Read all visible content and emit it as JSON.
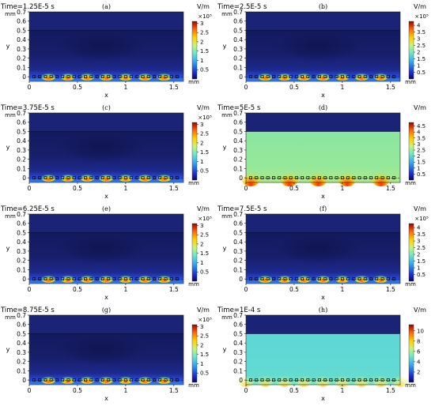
{
  "chart_data": [
    {
      "type": "heatmap",
      "panel_label": "(a)",
      "title": "Time=1.25E-5 s",
      "xlabel": "x",
      "ylabel": "y",
      "x_unit": "mm",
      "y_unit": "mm",
      "xlim": [
        0,
        1.6
      ],
      "ylim": [
        -0.05,
        0.7
      ],
      "x_ticks": [
        "0",
        "0.5",
        "1",
        "1.5"
      ],
      "y_ticks": [
        "0",
        "0.1",
        "0.2",
        "0.3",
        "0.4",
        "0.5",
        "0.6",
        "0.7"
      ],
      "colorbar": {
        "unit": "V/m",
        "multiplier": "×10⁵",
        "ticks": [
          "0.5",
          "1",
          "1.5",
          "2",
          "2.5",
          "3"
        ],
        "max": 3.1
      },
      "field_state": "low",
      "hot_spots": [
        0.2,
        0.4,
        0.6,
        0.8,
        1.0,
        1.2,
        1.4
      ]
    },
    {
      "type": "heatmap",
      "panel_label": "(b)",
      "title": "Time=2.5E-5 s",
      "xlabel": "x",
      "ylabel": "y",
      "x_unit": "mm",
      "y_unit": "mm",
      "xlim": [
        0,
        1.6
      ],
      "ylim": [
        -0.05,
        0.7
      ],
      "x_ticks": [
        "0",
        "0.5",
        "1",
        "1.5"
      ],
      "y_ticks": [
        "0",
        "0.1",
        "0.2",
        "0.3",
        "0.4",
        "0.5",
        "0.6",
        "0.7"
      ],
      "colorbar": {
        "unit": "V/m",
        "multiplier": "×10⁵",
        "ticks": [
          "0.5",
          "1",
          "1.5",
          "2",
          "2.5",
          "3",
          "3.5",
          "4"
        ],
        "max": 4.3
      },
      "field_state": "low",
      "hot_spots": [
        0.2,
        0.4,
        0.6,
        0.8,
        1.0,
        1.2,
        1.4
      ]
    },
    {
      "type": "heatmap",
      "panel_label": "(c)",
      "title": "Time=3.75E-5 s",
      "xlabel": "x",
      "ylabel": "y",
      "x_unit": "mm",
      "y_unit": "mm",
      "xlim": [
        0,
        1.6
      ],
      "ylim": [
        -0.05,
        0.7
      ],
      "x_ticks": [
        "0",
        "0.5",
        "1",
        "1.5"
      ],
      "y_ticks": [
        "0",
        "0.1",
        "0.2",
        "0.3",
        "0.4",
        "0.5",
        "0.6",
        "0.7"
      ],
      "colorbar": {
        "unit": "V/m",
        "multiplier": "×10⁵",
        "ticks": [
          "0.5",
          "1",
          "1.5",
          "2",
          "2.5",
          "3"
        ],
        "max": 3.1
      },
      "field_state": "low",
      "hot_spots": [
        0.2,
        0.4,
        0.6,
        0.8,
        1.0,
        1.2,
        1.4
      ]
    },
    {
      "type": "heatmap",
      "panel_label": "(d)",
      "title": "Time=5E-5 s",
      "xlabel": "x",
      "ylabel": "y",
      "x_unit": "mm",
      "y_unit": "mm",
      "xlim": [
        0,
        1.6
      ],
      "ylim": [
        -0.05,
        0.7
      ],
      "x_ticks": [
        "0",
        "0.5",
        "1",
        "1.5"
      ],
      "y_ticks": [
        "0",
        "0.1",
        "0.2",
        "0.3",
        "0.4",
        "0.5",
        "0.6",
        "0.7"
      ],
      "colorbar": {
        "unit": "V/m",
        "multiplier": "",
        "ticks": [
          "0.5",
          "1",
          "1.5",
          "2",
          "2.5",
          "3",
          "3.5",
          "4",
          "4.5"
        ],
        "max": 4.8
      },
      "field_state": "high",
      "hot_spots": [
        0.05,
        0.45,
        0.75,
        1.05,
        1.4
      ]
    },
    {
      "type": "heatmap",
      "panel_label": "(e)",
      "title": "Time=6.25E-5 s",
      "xlabel": "x",
      "ylabel": "y",
      "x_unit": "mm",
      "y_unit": "mm",
      "xlim": [
        0,
        1.6
      ],
      "ylim": [
        -0.05,
        0.7
      ],
      "x_ticks": [
        "0",
        "0.5",
        "1",
        "1.5"
      ],
      "y_ticks": [
        "0",
        "0.1",
        "0.2",
        "0.3",
        "0.4",
        "0.5",
        "0.6",
        "0.7"
      ],
      "colorbar": {
        "unit": "V/m",
        "multiplier": "×10⁵",
        "ticks": [
          "0.5",
          "1",
          "1.5",
          "2",
          "2.5",
          "3"
        ],
        "max": 3.1
      },
      "field_state": "low",
      "hot_spots": [
        0.2,
        0.4,
        0.6,
        0.8,
        1.0,
        1.2,
        1.4
      ]
    },
    {
      "type": "heatmap",
      "panel_label": "(f)",
      "title": "Time=7.5E-5 s",
      "xlabel": "x",
      "ylabel": "y",
      "x_unit": "mm",
      "y_unit": "mm",
      "xlim": [
        0,
        1.6
      ],
      "ylim": [
        -0.05,
        0.7
      ],
      "x_ticks": [
        "0",
        "0.5",
        "1",
        "1.5"
      ],
      "y_ticks": [
        "0",
        "0.1",
        "0.2",
        "0.3",
        "0.4",
        "0.5",
        "0.6",
        "0.7"
      ],
      "colorbar": {
        "unit": "V/m",
        "multiplier": "×10⁵",
        "ticks": [
          "0.5",
          "1",
          "1.5",
          "2",
          "2.5",
          "3",
          "3.5",
          "4"
        ],
        "max": 4.3
      },
      "field_state": "low",
      "hot_spots": [
        0.2,
        0.4,
        0.6,
        0.8,
        1.0,
        1.2,
        1.4
      ]
    },
    {
      "type": "heatmap",
      "panel_label": "(g)",
      "title": "Time=8.75E-5 s",
      "xlabel": "x",
      "ylabel": "y",
      "x_unit": "mm",
      "y_unit": "mm",
      "xlim": [
        0,
        1.6
      ],
      "ylim": [
        -0.05,
        0.7
      ],
      "x_ticks": [
        "0",
        "0.5",
        "1",
        "1.5"
      ],
      "y_ticks": [
        "0",
        "0.1",
        "0.2",
        "0.3",
        "0.4",
        "0.5",
        "0.6",
        "0.7"
      ],
      "colorbar": {
        "unit": "V/m",
        "multiplier": "×10⁵",
        "ticks": [
          "0.5",
          "1",
          "1.5",
          "2",
          "2.5",
          "3"
        ],
        "max": 3.1
      },
      "field_state": "low",
      "hot_spots": [
        0.2,
        0.4,
        0.6,
        0.8,
        1.0,
        1.2,
        1.4
      ]
    },
    {
      "type": "heatmap",
      "panel_label": "(h)",
      "title": "Time=1E-4 s",
      "xlabel": "x",
      "ylabel": "y",
      "x_unit": "mm",
      "y_unit": "mm",
      "xlim": [
        0,
        1.6
      ],
      "ylim": [
        -0.05,
        0.7
      ],
      "x_ticks": [
        "0",
        "0.5",
        "1",
        "1.5"
      ],
      "y_ticks": [
        "0",
        "0.1",
        "0.2",
        "0.3",
        "0.4",
        "0.5",
        "0.6",
        "0.7"
      ],
      "colorbar": {
        "unit": "V/m",
        "multiplier": "",
        "ticks": [
          "2",
          "4",
          "6",
          "8",
          "10"
        ],
        "max": 11.2
      },
      "field_state": "medium",
      "hot_spots": [
        0.0,
        0.2,
        0.4,
        0.6,
        0.8,
        1.0,
        1.2,
        1.4,
        1.6
      ]
    }
  ],
  "colors": {
    "dark_navy": "#141a5e",
    "upper_band_navy": "#1a2375",
    "field_dark_blue": "#232ea8",
    "field_bright_blue": "#2f55e8",
    "field_green": "#7fe8a8",
    "field_teal": "#6fe0d8",
    "hot_orange": "#ff8a00",
    "hot_red": "#e82000",
    "axis_text": "#000000"
  }
}
